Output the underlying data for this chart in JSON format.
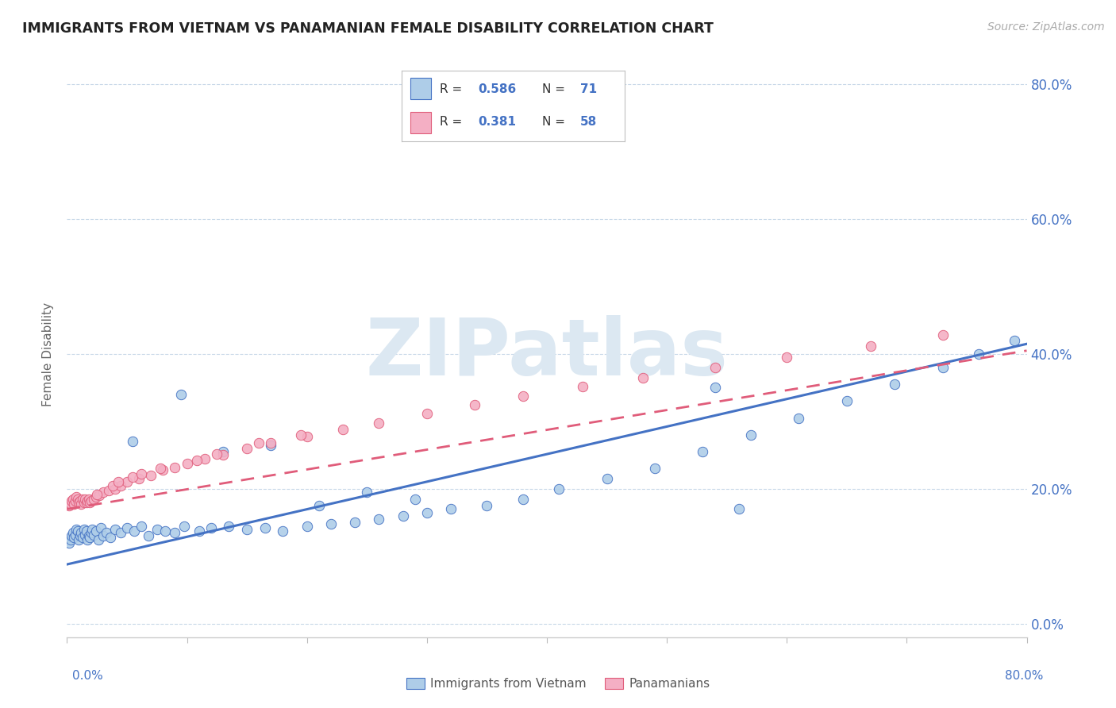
{
  "title": "IMMIGRANTS FROM VIETNAM VS PANAMANIAN FEMALE DISABILITY CORRELATION CHART",
  "source": "Source: ZipAtlas.com",
  "ylabel": "Female Disability",
  "ytick_vals": [
    0.0,
    0.2,
    0.4,
    0.6,
    0.8
  ],
  "xlim": [
    0.0,
    0.8
  ],
  "ylim": [
    -0.02,
    0.82
  ],
  "color_vietnam": "#aecde8",
  "color_panama": "#f4afc4",
  "color_line_vietnam": "#4472c4",
  "color_line_panama": "#e05c7a",
  "color_text_blue": "#4472c4",
  "watermark_color": "#dce8f2",
  "vietnam_x": [
    0.002,
    0.003,
    0.004,
    0.005,
    0.006,
    0.007,
    0.008,
    0.009,
    0.01,
    0.011,
    0.012,
    0.013,
    0.014,
    0.015,
    0.016,
    0.017,
    0.018,
    0.019,
    0.02,
    0.021,
    0.022,
    0.024,
    0.026,
    0.028,
    0.03,
    0.033,
    0.036,
    0.04,
    0.045,
    0.05,
    0.056,
    0.062,
    0.068,
    0.075,
    0.082,
    0.09,
    0.098,
    0.11,
    0.12,
    0.135,
    0.15,
    0.165,
    0.18,
    0.2,
    0.22,
    0.24,
    0.26,
    0.28,
    0.3,
    0.32,
    0.35,
    0.38,
    0.41,
    0.45,
    0.49,
    0.53,
    0.57,
    0.61,
    0.65,
    0.69,
    0.73,
    0.76,
    0.79,
    0.055,
    0.095,
    0.13,
    0.17,
    0.21,
    0.25,
    0.29,
    0.54,
    0.56
  ],
  "vietnam_y": [
    0.12,
    0.125,
    0.13,
    0.135,
    0.128,
    0.132,
    0.14,
    0.138,
    0.125,
    0.13,
    0.135,
    0.128,
    0.14,
    0.132,
    0.138,
    0.125,
    0.13,
    0.128,
    0.135,
    0.14,
    0.132,
    0.138,
    0.125,
    0.142,
    0.13,
    0.135,
    0.128,
    0.14,
    0.135,
    0.142,
    0.138,
    0.145,
    0.13,
    0.14,
    0.138,
    0.135,
    0.145,
    0.138,
    0.142,
    0.145,
    0.14,
    0.142,
    0.138,
    0.145,
    0.148,
    0.15,
    0.155,
    0.16,
    0.165,
    0.17,
    0.175,
    0.185,
    0.2,
    0.215,
    0.23,
    0.255,
    0.28,
    0.305,
    0.33,
    0.355,
    0.38,
    0.4,
    0.42,
    0.27,
    0.34,
    0.255,
    0.265,
    0.175,
    0.195,
    0.185,
    0.35,
    0.17
  ],
  "panama_x": [
    0.002,
    0.003,
    0.004,
    0.005,
    0.006,
    0.007,
    0.008,
    0.009,
    0.01,
    0.011,
    0.012,
    0.013,
    0.014,
    0.015,
    0.016,
    0.017,
    0.018,
    0.019,
    0.02,
    0.022,
    0.024,
    0.027,
    0.03,
    0.035,
    0.04,
    0.045,
    0.05,
    0.06,
    0.07,
    0.08,
    0.09,
    0.1,
    0.115,
    0.13,
    0.15,
    0.17,
    0.2,
    0.23,
    0.26,
    0.3,
    0.34,
    0.38,
    0.43,
    0.48,
    0.54,
    0.6,
    0.67,
    0.73,
    0.055,
    0.025,
    0.062,
    0.078,
    0.108,
    0.125,
    0.16,
    0.195,
    0.038,
    0.043
  ],
  "panama_y": [
    0.175,
    0.178,
    0.182,
    0.185,
    0.178,
    0.182,
    0.188,
    0.185,
    0.18,
    0.182,
    0.178,
    0.185,
    0.18,
    0.185,
    0.18,
    0.182,
    0.185,
    0.18,
    0.182,
    0.185,
    0.188,
    0.19,
    0.195,
    0.198,
    0.2,
    0.205,
    0.21,
    0.215,
    0.22,
    0.228,
    0.232,
    0.238,
    0.245,
    0.25,
    0.26,
    0.268,
    0.278,
    0.288,
    0.298,
    0.312,
    0.325,
    0.338,
    0.352,
    0.365,
    0.38,
    0.395,
    0.412,
    0.428,
    0.218,
    0.192,
    0.222,
    0.23,
    0.242,
    0.252,
    0.268,
    0.28,
    0.205,
    0.21
  ],
  "vietnam_line_x0": 0.0,
  "vietnam_line_y0": 0.088,
  "vietnam_line_x1": 0.8,
  "vietnam_line_y1": 0.415,
  "panama_line_x0": 0.0,
  "panama_line_y0": 0.17,
  "panama_line_x1": 0.8,
  "panama_line_y1": 0.405
}
